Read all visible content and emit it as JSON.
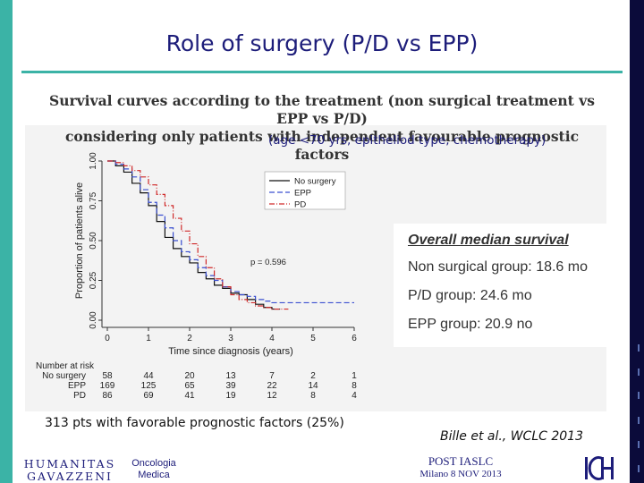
{
  "slide": {
    "title": "Role of surgery (P/D vs EPP)",
    "headline_line1": "Survival curves according to the treatment (non surgical treatment vs EPP vs P/D)",
    "headline_line2": "considering only patients with independent favourable prognostic factors",
    "subheadline": "(age <70 yrs, epitheliod type, chemotherapy)",
    "footnote": "313 pts with favorable prognostic factors (25%)",
    "citation": "Bille et al., WCLC 2013"
  },
  "median": {
    "title": "Overall median survival",
    "lines": [
      "Non surgical group: 18.6 mo",
      "P/D group: 24.6 mo",
      "EPP group: 20.9 no"
    ]
  },
  "logos": {
    "left_line1": "HUMANITAS",
    "left_line2": "GAVAZZENI",
    "oncologia_line1": "Oncologia",
    "oncologia_line2": "Medica",
    "post_line1": "POST IASLC",
    "post_line2": "Milano 8 NOV 2013",
    "right_mark": "IC H"
  },
  "colors": {
    "accent_teal": "#3bb3a6",
    "title_blue": "#1d1d7a",
    "no_surgery": "#111111",
    "epp": "#3a4fd0",
    "pd": "#d02a2a"
  },
  "chart_data": {
    "type": "line",
    "xlabel": "Time since diagnosis (years)",
    "ylabel": "Proportion of patients alive",
    "xlim": [
      0,
      6
    ],
    "ylim": [
      0,
      1
    ],
    "x_ticks": [
      "0",
      "1",
      "2",
      "3",
      "4",
      "5",
      "6"
    ],
    "y_ticks": [
      "0.00",
      "0.25",
      "0.50",
      "0.75",
      "1.00"
    ],
    "annotation": "p = 0.596",
    "legend_position": "top-right",
    "series": [
      {
        "name": "No surgery",
        "style": "solid",
        "x": [
          0,
          0.2,
          0.4,
          0.6,
          0.8,
          1.0,
          1.2,
          1.4,
          1.6,
          1.8,
          2.0,
          2.2,
          2.4,
          2.6,
          2.8,
          3.0,
          3.2,
          3.4,
          3.6,
          3.8,
          4.0,
          4.2
        ],
        "y": [
          1.0,
          0.97,
          0.93,
          0.86,
          0.8,
          0.72,
          0.62,
          0.52,
          0.45,
          0.4,
          0.36,
          0.3,
          0.26,
          0.22,
          0.2,
          0.17,
          0.16,
          0.13,
          0.1,
          0.08,
          0.07,
          0.07
        ]
      },
      {
        "name": "EPP",
        "style": "dashed",
        "x": [
          0,
          0.2,
          0.4,
          0.6,
          0.8,
          1.0,
          1.2,
          1.4,
          1.6,
          1.8,
          2.0,
          2.2,
          2.4,
          2.6,
          2.8,
          3.0,
          3.2,
          3.4,
          3.6,
          3.8,
          4.0,
          4.4,
          5.0,
          5.5,
          6.0
        ],
        "y": [
          1.0,
          0.98,
          0.95,
          0.9,
          0.82,
          0.74,
          0.66,
          0.58,
          0.5,
          0.43,
          0.38,
          0.33,
          0.28,
          0.25,
          0.21,
          0.18,
          0.16,
          0.15,
          0.13,
          0.12,
          0.11,
          0.11,
          0.11,
          0.11,
          0.11
        ]
      },
      {
        "name": "PD",
        "style": "dashdot",
        "x": [
          0,
          0.2,
          0.4,
          0.6,
          0.8,
          1.0,
          1.2,
          1.4,
          1.6,
          1.8,
          2.0,
          2.2,
          2.4,
          2.6,
          2.8,
          3.0,
          3.2,
          3.4,
          3.6,
          3.8,
          4.0,
          4.4
        ],
        "y": [
          1.0,
          0.99,
          0.97,
          0.94,
          0.9,
          0.85,
          0.79,
          0.72,
          0.64,
          0.56,
          0.48,
          0.4,
          0.33,
          0.26,
          0.21,
          0.16,
          0.13,
          0.11,
          0.09,
          0.08,
          0.07,
          0.07
        ]
      }
    ],
    "risk_table": {
      "header": "Number at risk",
      "rows": [
        {
          "label": "No surgery",
          "values": [
            "58",
            "44",
            "20",
            "13",
            "7",
            "2",
            "1"
          ]
        },
        {
          "label": "EPP",
          "values": [
            "169",
            "125",
            "65",
            "39",
            "22",
            "14",
            "8"
          ]
        },
        {
          "label": "PD",
          "values": [
            "86",
            "69",
            "41",
            "19",
            "12",
            "8",
            "4"
          ]
        }
      ]
    }
  }
}
